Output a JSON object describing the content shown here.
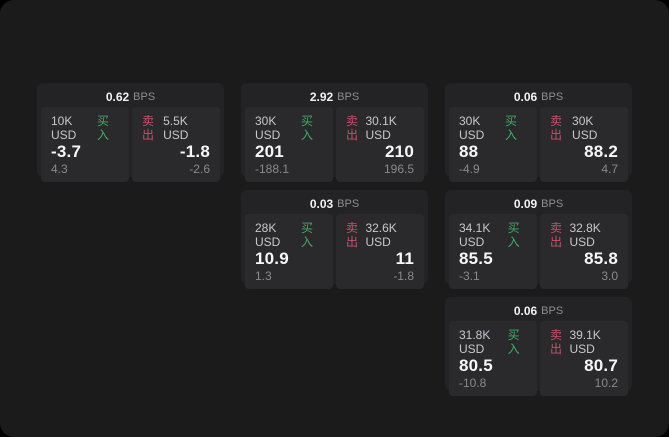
{
  "labels": {
    "bps_unit": "BPS",
    "buy": "买入",
    "sell": "卖出"
  },
  "colors": {
    "background": "#000000",
    "panel": "#1b1b1c",
    "card": "#232325",
    "pane": "#2a2a2c",
    "buy_green": "#3fae63",
    "sell_red": "#c9506a",
    "value_white": "#f7f7f8",
    "muted_gray": "#8a8a8e"
  },
  "cards": [
    {
      "bps": "0.62",
      "buy": {
        "amount": "10K USD",
        "value": "-3.7",
        "delta": "4.3"
      },
      "sell": {
        "amount": "5.5K USD",
        "value": "-1.8",
        "delta": "-2.6"
      }
    },
    {
      "bps": "2.92",
      "buy": {
        "amount": "30K USD",
        "value": "201",
        "delta": "-188.1"
      },
      "sell": {
        "amount": "30.1K USD",
        "value": "210",
        "delta": "196.5"
      }
    },
    {
      "bps": "0.06",
      "buy": {
        "amount": "30K USD",
        "value": "88",
        "delta": "-4.9"
      },
      "sell": {
        "amount": "30K USD",
        "value": "88.2",
        "delta": "4.7"
      }
    },
    {
      "bps": "0.03",
      "buy": {
        "amount": "28K USD",
        "value": "10.9",
        "delta": "1.3"
      },
      "sell": {
        "amount": "32.6K USD",
        "value": "11",
        "delta": "-1.8"
      }
    },
    {
      "bps": "0.09",
      "buy": {
        "amount": "34.1K USD",
        "value": "85.5",
        "delta": "-3.1"
      },
      "sell": {
        "amount": "32.8K USD",
        "value": "85.8",
        "delta": "3.0"
      }
    },
    {
      "bps": "0.06",
      "buy": {
        "amount": "31.8K USD",
        "value": "80.5",
        "delta": "-10.8"
      },
      "sell": {
        "amount": "39.1K USD",
        "value": "80.7",
        "delta": "10.2"
      }
    }
  ]
}
